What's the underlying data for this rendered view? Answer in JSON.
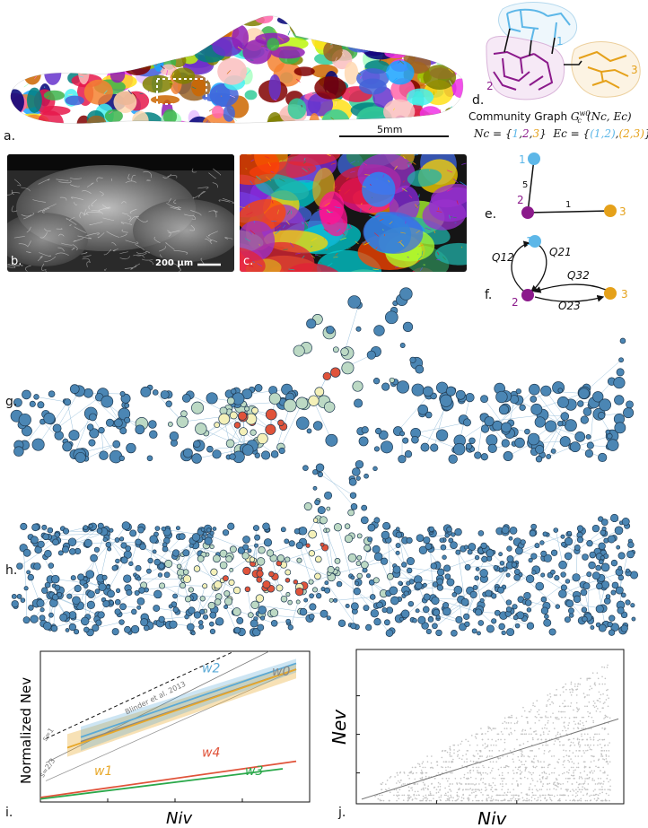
{
  "panel_labels": {
    "a": "a.",
    "b": "b.",
    "c": "c.",
    "d": "d.",
    "e": "e.",
    "f": "f.",
    "g": "g.",
    "h": "h.",
    "i": "i.",
    "j": "j."
  },
  "panel_a": {
    "scale_label": "5mm"
  },
  "panel_b": {
    "scale_label": "200 µm"
  },
  "panel_d": {
    "title_prefix": "Community Graph ",
    "title_math": "G",
    "title_sup": "w0",
    "title_sub": "c",
    "title_args": "(Nc, Ec)",
    "nc_label": "Nc = {",
    "nc_values": [
      "1",
      "2",
      "3"
    ],
    "ec_label": "Ec = {",
    "ec_values": [
      "(1,2)",
      "(2,3)"
    ],
    "community_labels": [
      "1",
      "2",
      "3"
    ]
  },
  "panel_e": {
    "node_labels": [
      "1",
      "2",
      "3"
    ],
    "edge_weights": [
      "5",
      "1"
    ]
  },
  "panel_f": {
    "node_labels": [
      "1",
      "2",
      "3"
    ],
    "edge_labels": [
      "Q12",
      "Q21",
      "Q32",
      "Q23"
    ]
  },
  "colors": {
    "node1": "#5db7e8",
    "node2": "#8b1a8b",
    "node3": "#e5a11a",
    "w2": "#5aa9d6",
    "w0": "#888888",
    "w1": "#e8a82a",
    "w4": "#e0533a",
    "w3": "#2aa84a",
    "network_edge": "#4a8fbf"
  },
  "chart_data": [
    {
      "type": "line",
      "panel": "i",
      "xlabel": "Niv",
      "ylabel": "Normalized Nev",
      "series": [
        {
          "name": "w2",
          "x": [
            0.15,
            0.95
          ],
          "y": [
            0.43,
            0.92
          ]
        },
        {
          "name": "w0",
          "x": [
            0.15,
            0.95
          ],
          "y": [
            0.4,
            0.88
          ]
        },
        {
          "name": "w1",
          "x": [
            0.1,
            0.95
          ],
          "y": [
            0.36,
            0.88
          ]
        },
        {
          "name": "w4",
          "x": [
            0.0,
            0.95
          ],
          "y": [
            0.03,
            0.27
          ]
        },
        {
          "name": "w3",
          "x": [
            0.0,
            0.9
          ],
          "y": [
            0.02,
            0.22
          ]
        }
      ],
      "reference_lines": [
        {
          "name": "s=1",
          "style": "dashed"
        },
        {
          "name": "s=2/3",
          "style": "solid"
        },
        {
          "name": "Blinder et al. 2013",
          "style": "solid"
        }
      ],
      "grid": false
    },
    {
      "type": "scatter",
      "panel": "j",
      "xlabel": "Niv",
      "ylabel": "Nev",
      "fit_line": {
        "x": [
          0.0,
          1.0
        ],
        "y": [
          0.0,
          0.55
        ]
      },
      "grid": false
    }
  ]
}
